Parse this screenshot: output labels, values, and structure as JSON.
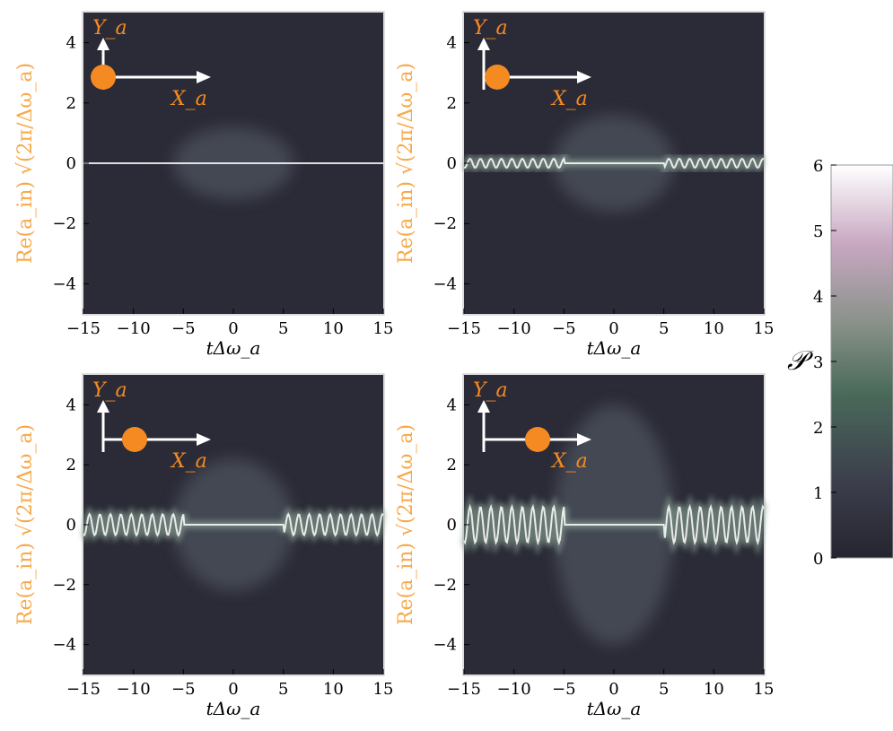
{
  "chart_data": [
    {
      "type": "heatmap",
      "panel": "top-left",
      "x_ticks": [
        "−15",
        "−10",
        "−5",
        "0",
        "5",
        "10",
        "15"
      ],
      "y_ticks": [
        "4",
        "2",
        "0",
        "−2",
        "−4"
      ],
      "xlim": [
        -15,
        15
      ],
      "ylim": [
        -5,
        5
      ],
      "xlabel": "tΔω_a",
      "ylabel": "Re(a_in) √(2π/Δω_a)",
      "inset": {
        "x_axis": "X_a",
        "y_axis": "Y_a",
        "dot_offset": 0
      },
      "ripple_amplitude": 0,
      "envelope_height": 1.2
    },
    {
      "type": "heatmap",
      "panel": "top-right",
      "x_ticks": [
        "−15",
        "−10",
        "−5",
        "0",
        "5",
        "10",
        "15"
      ],
      "y_ticks": [
        "4",
        "2",
        "0",
        "−2",
        "−4"
      ],
      "xlim": [
        -15,
        15
      ],
      "ylim": [
        -5,
        5
      ],
      "xlabel": "tΔω_a",
      "ylabel": "Re(a_in) √(2π/Δω_a)",
      "inset": {
        "x_axis": "X_a",
        "y_axis": "Y_a",
        "dot_offset": 0.15
      },
      "ripple_amplitude": 0.15,
      "envelope_height": 1.6
    },
    {
      "type": "heatmap",
      "panel": "bottom-left",
      "x_ticks": [
        "−15",
        "−10",
        "−5",
        "0",
        "5",
        "10",
        "15"
      ],
      "y_ticks": [
        "4",
        "2",
        "0",
        "−2",
        "−4"
      ],
      "xlim": [
        -15,
        15
      ],
      "ylim": [
        -5,
        5
      ],
      "xlabel": "tΔω_a",
      "ylabel": "Re(a_in) √(2π/Δω_a)",
      "inset": {
        "x_axis": "X_a",
        "y_axis": "Y_a",
        "dot_offset": 0.35
      },
      "ripple_amplitude": 0.35,
      "envelope_height": 2.2
    },
    {
      "type": "heatmap",
      "panel": "bottom-right",
      "x_ticks": [
        "−15",
        "−10",
        "−5",
        "0",
        "5",
        "10",
        "15"
      ],
      "y_ticks": [
        "4",
        "2",
        "0",
        "−2",
        "−4"
      ],
      "xlim": [
        -15,
        15
      ],
      "ylim": [
        -5,
        5
      ],
      "xlabel": "tΔω_a",
      "ylabel": "Re(a_in) √(2π/Δω_a)",
      "inset": {
        "x_axis": "X_a",
        "y_axis": "Y_a",
        "dot_offset": 0.6
      },
      "ripple_amplitude": 0.6,
      "envelope_height": 4.0
    }
  ],
  "colorbar": {
    "label": "𝒫",
    "ticks": [
      "6",
      "5",
      "4",
      "3",
      "2",
      "1",
      "0"
    ],
    "range": [
      0,
      6
    ]
  },
  "colors": {
    "background": "#2B2B37",
    "accent": "#F58A23",
    "label": "#F7A94A",
    "line": "#FFFFFF"
  }
}
